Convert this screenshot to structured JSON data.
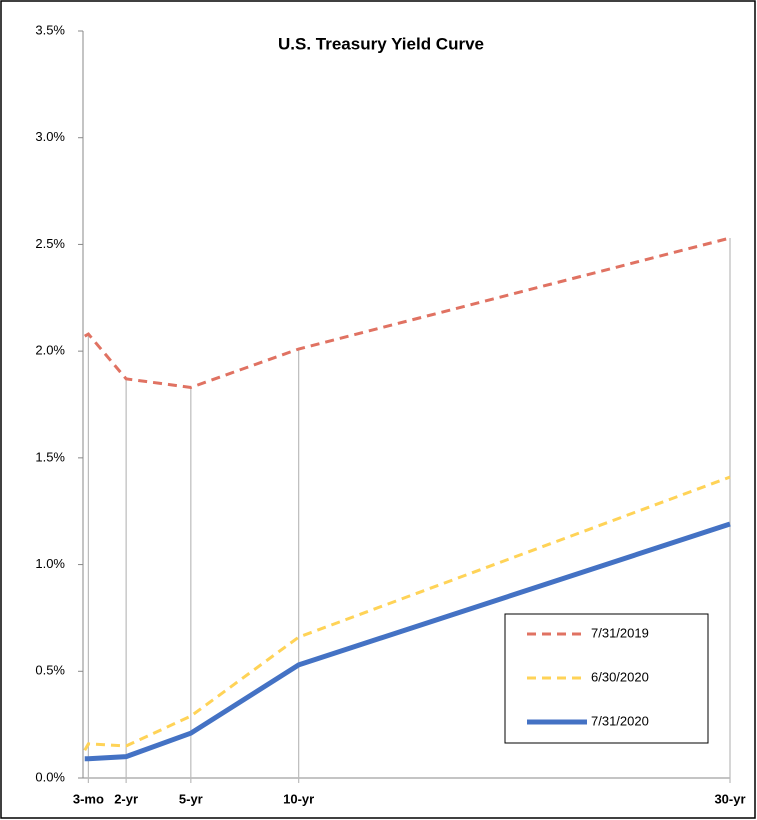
{
  "chart_data": {
    "type": "line",
    "title": "U.S. Treasury Yield Curve",
    "x": [
      0.08,
      0.25,
      2,
      5,
      10,
      30
    ],
    "xlim": [
      0,
      30
    ],
    "xticks": [
      {
        "value": 0.25,
        "label": "3-mo"
      },
      {
        "value": 2,
        "label": "2-yr"
      },
      {
        "value": 5,
        "label": "5-yr"
      },
      {
        "value": 10,
        "label": "10-yr"
      },
      {
        "value": 30,
        "label": "30-yr"
      }
    ],
    "ylim": [
      0,
      3.5
    ],
    "yticks": [
      {
        "value": 0,
        "label": "0.0%"
      },
      {
        "value": 0.5,
        "label": "0.5%"
      },
      {
        "value": 1,
        "label": "1.0%"
      },
      {
        "value": 1.5,
        "label": "1.5%"
      },
      {
        "value": 2,
        "label": "2.0%"
      },
      {
        "value": 2.5,
        "label": "2.5%"
      },
      {
        "value": 3,
        "label": "3.0%"
      },
      {
        "value": 3.5,
        "label": "3.5%"
      }
    ],
    "series": [
      {
        "name": "7/31/2019",
        "color": "#e07262",
        "dashed": true,
        "values": [
          2.07,
          2.08,
          1.87,
          1.83,
          2.01,
          2.53
        ]
      },
      {
        "name": "6/30/2020",
        "color": "#ffd357",
        "dashed": true,
        "values": [
          0.13,
          0.16,
          0.15,
          0.29,
          0.66,
          1.41
        ]
      },
      {
        "name": "7/31/2020",
        "color": "#4472c4",
        "dashed": false,
        "values": [
          0.09,
          0.09,
          0.1,
          0.21,
          0.53,
          1.19
        ]
      }
    ],
    "legend": "lower-right"
  }
}
